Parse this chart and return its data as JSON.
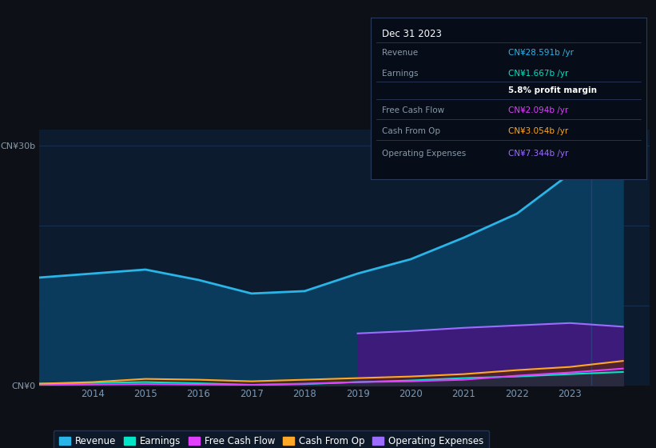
{
  "background_color": "#0d1117",
  "chart_bg_color": "#0d1b2e",
  "years": [
    2013,
    2014,
    2015,
    2016,
    2017,
    2018,
    2019,
    2020,
    2021,
    2022,
    2023,
    2024
  ],
  "revenue": [
    13.5,
    14.0,
    14.5,
    13.2,
    11.5,
    11.8,
    14.0,
    15.8,
    18.5,
    21.5,
    26.5,
    28.591
  ],
  "earnings": [
    0.2,
    0.3,
    0.4,
    0.25,
    0.05,
    0.15,
    0.4,
    0.6,
    0.9,
    1.1,
    1.4,
    1.667
  ],
  "free_cash_flow": [
    0.05,
    0.1,
    0.15,
    0.1,
    0.05,
    0.2,
    0.4,
    0.5,
    0.7,
    1.2,
    1.6,
    2.094
  ],
  "cash_from_op": [
    0.2,
    0.4,
    0.8,
    0.7,
    0.5,
    0.7,
    0.9,
    1.1,
    1.4,
    1.9,
    2.3,
    3.054
  ],
  "op_expenses_pre2019": [
    0.0,
    0.0,
    0.0,
    0.0,
    0.0,
    0.0
  ],
  "op_expenses_post2019": [
    6.5,
    6.8,
    7.2,
    7.5,
    7.8,
    7.344
  ],
  "years_pre2019": [
    2013,
    2014,
    2015,
    2016,
    2017,
    2018
  ],
  "years_post2019": [
    2019,
    2020,
    2021,
    2022,
    2023,
    2024
  ],
  "revenue_color": "#29b5e8",
  "earnings_color": "#00e5c5",
  "free_cash_flow_color": "#e040fb",
  "cash_from_op_color": "#ffa726",
  "op_expenses_color": "#9c6cff",
  "revenue_fill_color": "#0a3a5c",
  "op_expenses_fill_color": "#3d1b7a",
  "ylim": [
    0,
    32
  ],
  "xlim_min": 2013,
  "xlim_max": 2024.5,
  "x_ticks": [
    2014,
    2015,
    2016,
    2017,
    2018,
    2019,
    2020,
    2021,
    2022,
    2023
  ],
  "grid_color": "#1e3a5f",
  "tooltip_bg": "#060d18",
  "tooltip_border": "#2a3a5a",
  "tooltip_date": "Dec 31 2023",
  "tooltip_revenue_label": "Revenue",
  "tooltip_revenue_value": "CN¥28.591b /yr",
  "tooltip_earnings_label": "Earnings",
  "tooltip_earnings_value": "CN¥1.667b /yr",
  "tooltip_margin": "5.8% profit margin",
  "tooltip_fcf_label": "Free Cash Flow",
  "tooltip_fcf_value": "CN¥2.094b /yr",
  "tooltip_cashop_label": "Cash From Op",
  "tooltip_cashop_value": "CN¥3.054b /yr",
  "tooltip_opex_label": "Operating Expenses",
  "tooltip_opex_value": "CN¥7.344b /yr",
  "legend_items": [
    "Revenue",
    "Earnings",
    "Free Cash Flow",
    "Cash From Op",
    "Operating Expenses"
  ],
  "legend_colors": [
    "#29b5e8",
    "#00e5c5",
    "#e040fb",
    "#ffa726",
    "#9c6cff"
  ]
}
